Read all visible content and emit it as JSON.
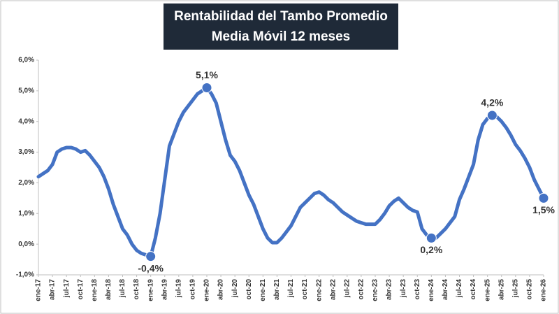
{
  "chart_data": {
    "type": "line",
    "title": [
      "Rentabilidad del Tambo Promedio",
      "Media Móvil 12 meses"
    ],
    "categories": [
      "ene-17",
      null,
      null,
      "abr-17",
      null,
      null,
      "jul-17",
      null,
      null,
      "oct-17",
      null,
      null,
      "ene-18",
      null,
      null,
      "abr-18",
      null,
      null,
      "jul-18",
      null,
      null,
      "oct-18",
      null,
      null,
      "ene-19",
      null,
      null,
      "abr-19",
      null,
      null,
      "jul-19",
      null,
      null,
      "oct-19",
      null,
      null,
      "ene-20",
      null,
      null,
      "abr-20",
      null,
      null,
      "jul-20",
      null,
      null,
      "oct-20",
      null,
      null,
      "ene-21",
      null,
      null,
      "abr-21",
      null,
      null,
      "jul-21",
      null,
      null,
      "oct-21",
      null,
      null,
      "ene-22",
      null,
      null,
      "abr-22",
      null,
      null,
      "jul-22",
      null,
      null,
      "oct-22",
      null,
      null,
      "ene-23",
      null,
      null,
      "abr-23",
      null,
      null,
      "jul-23",
      null,
      null,
      "oct-23",
      null,
      null,
      "ene-24",
      null,
      null,
      "abr-24",
      null,
      null,
      "jul-24",
      null,
      null,
      "oct-24",
      null,
      null,
      "ene-25",
      null,
      null,
      "abr-25",
      null,
      null,
      "jul-25",
      null,
      null,
      "oct-25",
      null,
      null,
      "ene-26"
    ],
    "series": [
      {
        "name": null,
        "color": "#4472c4",
        "values": [
          2.2,
          2.3,
          2.4,
          2.6,
          3.0,
          3.1,
          3.15,
          3.15,
          3.1,
          3.0,
          3.05,
          2.9,
          2.7,
          2.5,
          2.2,
          1.8,
          1.3,
          0.9,
          0.5,
          0.3,
          0.0,
          -0.2,
          -0.3,
          -0.35,
          -0.4,
          0.2,
          1.0,
          2.1,
          3.2,
          3.6,
          4.0,
          4.3,
          4.5,
          4.7,
          4.9,
          5.0,
          5.1,
          4.9,
          4.6,
          4.0,
          3.4,
          2.9,
          2.7,
          2.4,
          2.0,
          1.6,
          1.3,
          0.9,
          0.5,
          0.2,
          0.05,
          0.05,
          0.2,
          0.4,
          0.6,
          0.9,
          1.2,
          1.35,
          1.5,
          1.65,
          1.7,
          1.6,
          1.45,
          1.35,
          1.2,
          1.05,
          0.95,
          0.85,
          0.75,
          0.7,
          0.65,
          0.65,
          0.65,
          0.8,
          1.0,
          1.25,
          1.4,
          1.5,
          1.35,
          1.2,
          1.1,
          1.05,
          0.5,
          0.3,
          0.2,
          0.2,
          0.35,
          0.5,
          0.7,
          0.9,
          1.45,
          1.8,
          2.2,
          2.6,
          3.4,
          3.9,
          4.1,
          4.2,
          4.15,
          4.0,
          3.8,
          3.55,
          3.25,
          3.05,
          2.8,
          2.5,
          2.1,
          1.8,
          1.5
        ],
        "value_labels": [
          null,
          null,
          null,
          null,
          null,
          null,
          null,
          null,
          null,
          null,
          null,
          null,
          null,
          null,
          null,
          null,
          null,
          null,
          null,
          null,
          null,
          null,
          null,
          null,
          "-0,4%",
          null,
          null,
          null,
          null,
          null,
          null,
          null,
          null,
          null,
          null,
          null,
          "5,1%",
          null,
          null,
          null,
          null,
          null,
          null,
          null,
          null,
          null,
          null,
          null,
          null,
          null,
          null,
          null,
          null,
          null,
          null,
          null,
          null,
          null,
          null,
          null,
          null,
          null,
          null,
          null,
          null,
          null,
          null,
          null,
          null,
          null,
          null,
          null,
          null,
          null,
          null,
          null,
          null,
          null,
          null,
          null,
          null,
          null,
          null,
          null,
          "0,2%",
          null,
          null,
          null,
          null,
          null,
          null,
          null,
          null,
          null,
          null,
          null,
          null,
          "4,2%",
          null,
          null,
          null,
          null,
          null,
          null,
          null,
          null,
          null,
          null,
          "1,5%"
        ]
      }
    ],
    "ylim": [
      -1,
      6
    ],
    "yticks": [
      {
        "value": -1,
        "label": "-1,0%"
      },
      {
        "value": 0,
        "label": "0,0%"
      },
      {
        "value": 1,
        "label": "1,0%"
      },
      {
        "value": 2,
        "label": "2,0%"
      },
      {
        "value": 3,
        "label": "3,0%"
      },
      {
        "value": 4,
        "label": "4,0%"
      },
      {
        "value": 5,
        "label": "5,0%"
      },
      {
        "value": 6,
        "label": "6,0%"
      }
    ],
    "grid": false
  }
}
